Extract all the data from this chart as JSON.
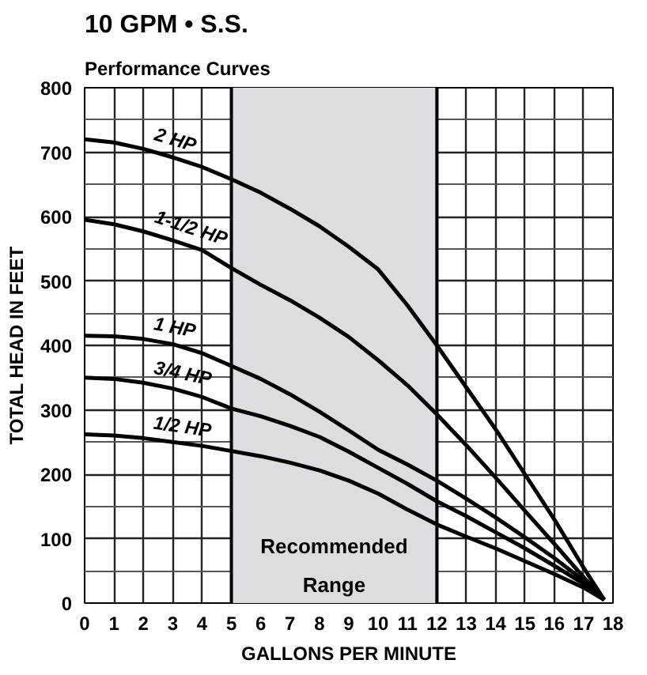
{
  "chart_data": {
    "type": "line",
    "title": "10 GPM • S.S.",
    "subtitle": "Performance Curves",
    "xlabel": "GALLONS PER MINUTE",
    "ylabel": "TOTAL HEAD IN FEET",
    "x": [
      0,
      1,
      2,
      3,
      4,
      5,
      6,
      7,
      8,
      9,
      10,
      11,
      12,
      13,
      14,
      15,
      16,
      17,
      17.7
    ],
    "series": [
      {
        "name": "2 HP",
        "color": "#000000",
        "values": [
          720,
          715,
          705,
          692,
          677,
          658,
          637,
          612,
          585,
          553,
          518,
          462,
          400,
          335,
          270,
          200,
          130,
          55,
          5
        ]
      },
      {
        "name": "1-1/2 HP",
        "color": "#000000",
        "values": [
          595,
          588,
          577,
          563,
          548,
          520,
          494,
          470,
          443,
          413,
          377,
          338,
          293,
          245,
          195,
          143,
          92,
          40,
          5
        ]
      },
      {
        "name": "1 HP",
        "color": "#000000",
        "values": [
          415,
          414,
          410,
          402,
          388,
          368,
          348,
          324,
          297,
          268,
          238,
          215,
          190,
          162,
          133,
          102,
          70,
          35,
          5
        ]
      },
      {
        "name": "3/4 HP",
        "color": "#000000",
        "values": [
          350,
          348,
          342,
          333,
          320,
          302,
          290,
          275,
          258,
          235,
          210,
          185,
          158,
          135,
          110,
          85,
          58,
          30,
          5
        ]
      },
      {
        "name": "1/2 HP",
        "color": "#000000",
        "values": [
          262,
          260,
          256,
          250,
          244,
          236,
          228,
          218,
          206,
          190,
          170,
          145,
          122,
          103,
          85,
          65,
          45,
          24,
          5
        ]
      }
    ],
    "xlim": [
      0,
      18
    ],
    "xticks": [
      0,
      1,
      2,
      3,
      4,
      5,
      6,
      7,
      8,
      9,
      10,
      11,
      12,
      13,
      14,
      15,
      16,
      17,
      18
    ],
    "ylim": [
      0,
      800
    ],
    "yticks": [
      0,
      100,
      200,
      300,
      400,
      500,
      600,
      700,
      800
    ],
    "bands": [
      {
        "axis": "x",
        "from": 5,
        "to": 12,
        "label": "Recommended\nRange",
        "color": "#dcdde0"
      }
    ],
    "grid": true,
    "marker": "none",
    "line_style": "solid"
  }
}
